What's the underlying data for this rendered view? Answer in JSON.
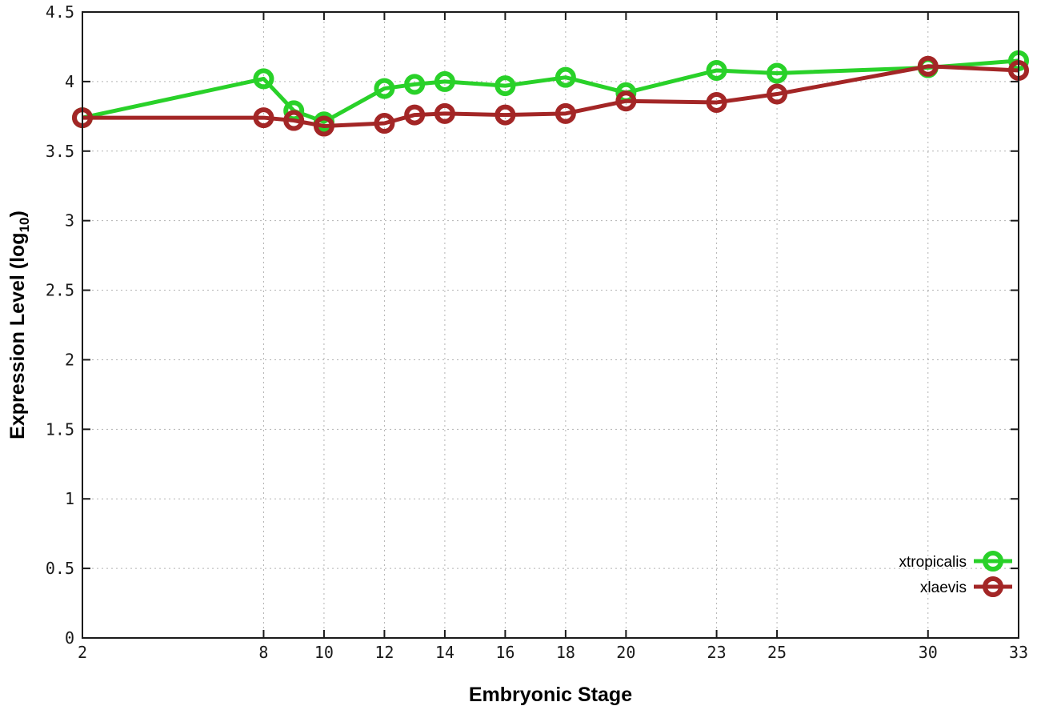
{
  "chart": {
    "background": "#ffffff",
    "border_color": "#1a1a1a",
    "grid_color": "#b3b3b3"
  },
  "chart_data": {
    "type": "line",
    "title": "",
    "xlabel": "Embryonic Stage",
    "ylabel": "Expression Level (log10)",
    "ylabel_parts": {
      "main": "Expression Level (log",
      "sub": "10",
      "close": ")"
    },
    "xlim": [
      2,
      33
    ],
    "ylim": [
      0,
      4.5
    ],
    "x_ticks": [
      2,
      8,
      10,
      12,
      14,
      16,
      18,
      20,
      23,
      25,
      30,
      33
    ],
    "y_ticks": [
      0,
      0.5,
      1,
      1.5,
      2,
      2.5,
      3,
      3.5,
      4,
      4.5
    ],
    "grid": true,
    "legend_position": "bottom-right",
    "marker": "open-circle",
    "x": [
      2,
      8,
      9,
      10,
      12,
      13,
      14,
      16,
      18,
      20,
      23,
      25,
      30,
      33
    ],
    "series": [
      {
        "name": "xtropicalis",
        "color": "#29d129",
        "values": [
          3.74,
          4.02,
          3.79,
          3.71,
          3.95,
          3.98,
          4.0,
          3.97,
          4.03,
          3.92,
          4.08,
          4.06,
          4.1,
          4.15
        ]
      },
      {
        "name": "xlaevis",
        "color": "#a32626",
        "values": [
          3.74,
          3.74,
          3.72,
          3.68,
          3.7,
          3.76,
          3.77,
          3.76,
          3.77,
          3.86,
          3.85,
          3.91,
          4.11,
          4.08
        ]
      }
    ]
  }
}
